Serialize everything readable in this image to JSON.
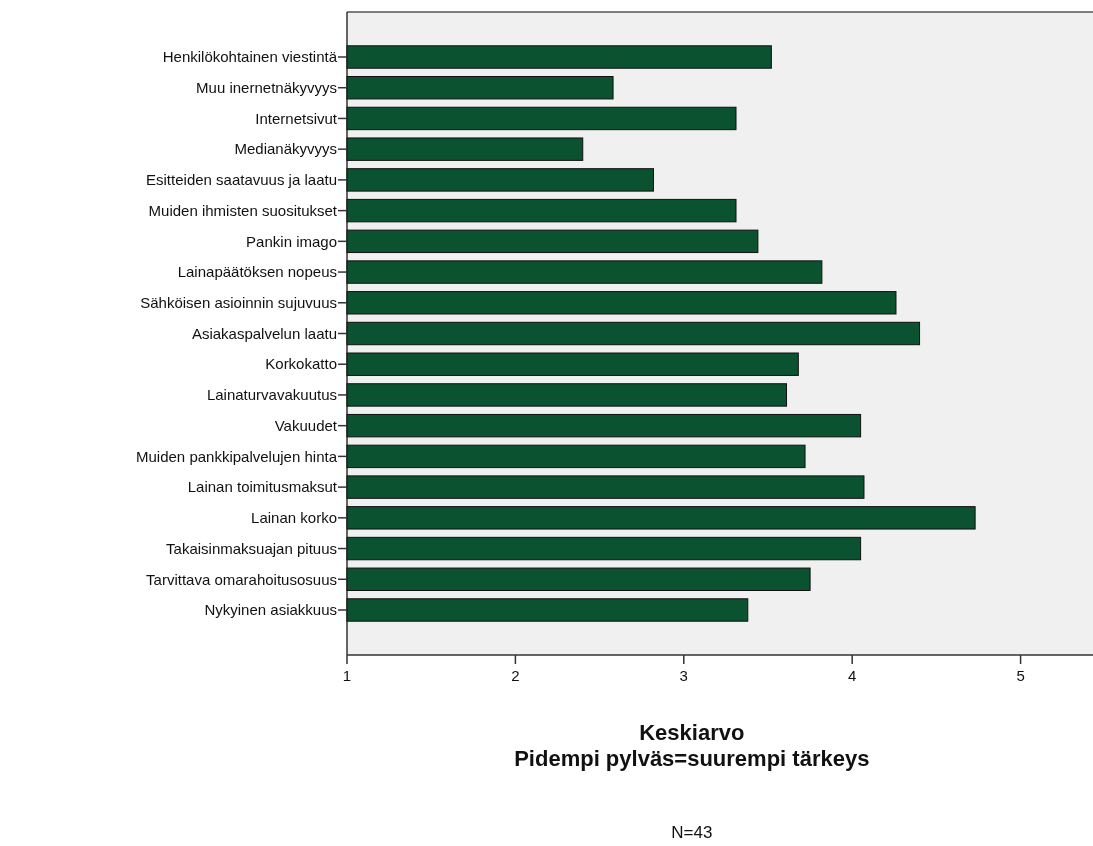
{
  "chart_data": {
    "type": "bar",
    "orientation": "horizontal",
    "categories": [
      "Henkilökohtainen viestintä",
      "Muu inernetnäkyvyys",
      "Internetsivut",
      "Medianäkyvyys",
      "Esitteiden saatavuus ja laatu",
      "Muiden ihmisten suositukset",
      "Pankin imago",
      "Lainapäätöksen nopeus",
      "Sähköisen asioinnin sujuvuus",
      "Asiakaspalvelun laatu",
      "Korkokatto",
      "Lainaturvavakuutus",
      "Vakuudet",
      "Muiden pankkipalvelujen hinta",
      "Lainan toimitusmaksut",
      "Lainan korko",
      "Takaisinmaksuajan pituus",
      "Tarvittava omarahoitusosuus",
      "Nykyinen asiakkuus"
    ],
    "values": [
      3.52,
      2.58,
      3.31,
      2.4,
      2.82,
      3.31,
      3.44,
      3.82,
      4.26,
      4.4,
      3.68,
      3.61,
      4.05,
      3.72,
      4.07,
      4.73,
      4.05,
      3.75,
      3.38
    ],
    "color": "#0b5230",
    "xlim": [
      1,
      5.43
    ],
    "xticks": [
      1,
      2,
      3,
      4,
      5
    ],
    "xlabel": "Keskiarvo\nPidempi pylväs=suurempi tärkeys",
    "annotations": [
      "N=43"
    ]
  }
}
